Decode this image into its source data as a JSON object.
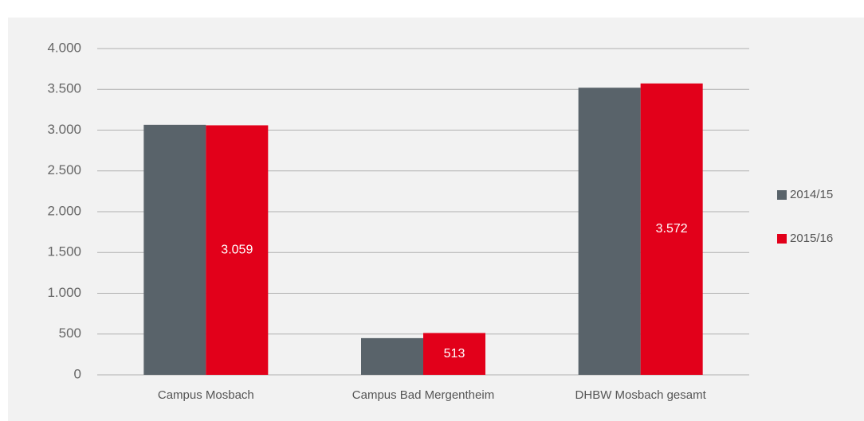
{
  "chart_data": {
    "type": "bar",
    "categories": [
      "Campus Mosbach",
      "Campus Bad Mergentheim",
      "DHBW Mosbach gesamt"
    ],
    "series": [
      {
        "name": "2014/15",
        "color": "#59636a",
        "values": [
          3065,
          450,
          3520
        ]
      },
      {
        "name": "2015/16",
        "color": "#e2001a",
        "values": [
          3059,
          513,
          3572
        ],
        "value_labels": [
          "3.059",
          "513",
          "3.572"
        ]
      }
    ],
    "ylim": [
      0,
      4000
    ],
    "yticks": [
      0,
      500,
      {
        "value": 1000,
        "label": "1.000"
      },
      {
        "value": 1500,
        "label": "1.500"
      },
      {
        "value": 2000,
        "label": "2.000"
      },
      {
        "value": 2500,
        "label": "2.500"
      },
      {
        "value": 3000,
        "label": "3.000"
      },
      {
        "value": 3500,
        "label": "3.500"
      },
      {
        "value": 4000,
        "label": "4.000"
      }
    ],
    "grid": true,
    "legend": "right"
  }
}
